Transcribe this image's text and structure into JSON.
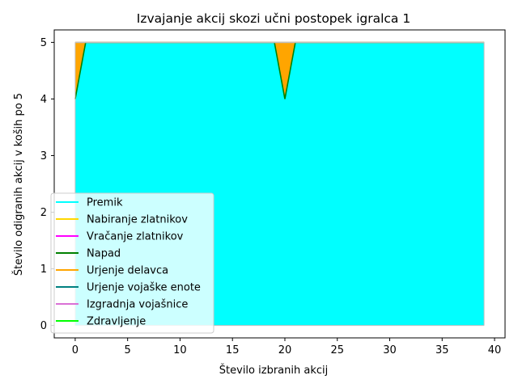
{
  "chart_data": {
    "type": "area",
    "title": "Izvajanje akcij skozi učni postopek igralca 1",
    "xlabel": "Število izbranih akcij",
    "ylabel": "Število odigranih akcij v koših po 5",
    "xlim": [
      -2,
      41
    ],
    "ylim": [
      -0.22,
      5.22
    ],
    "xticks": [
      0,
      5,
      10,
      15,
      20,
      25,
      30,
      35,
      40
    ],
    "yticks": [
      0,
      1,
      2,
      3,
      4,
      5
    ],
    "grid": false,
    "legend_position": "lower-left",
    "stacked": true,
    "x": [
      0,
      1,
      19,
      20,
      21,
      39
    ],
    "series": [
      {
        "name": "Premik",
        "color": "#00ffff",
        "values": [
          0,
          0,
          0,
          0,
          0,
          0
        ]
      },
      {
        "name": "Nabiranje zlatnikov",
        "color": "#ffd700",
        "values": [
          0,
          0,
          0,
          0,
          0,
          0
        ]
      },
      {
        "name": "Vračanje zlatnikov",
        "color": "#ff00ff",
        "values": [
          0,
          0,
          0,
          0,
          0,
          0
        ]
      },
      {
        "name": "Napad",
        "color": "#008000",
        "values": [
          4,
          5,
          5,
          4,
          5,
          5
        ]
      },
      {
        "name": "Urjenje delavca",
        "color": "#ffa500",
        "values": [
          1,
          0,
          0,
          1,
          0,
          0
        ]
      },
      {
        "name": "Urjenje vojaške enote",
        "color": "#008080",
        "values": [
          0,
          0,
          0,
          0,
          0,
          0
        ]
      },
      {
        "name": "Izgradnja vojašnice",
        "color": "#da70d6",
        "values": [
          0,
          0,
          0,
          0,
          0,
          0
        ]
      },
      {
        "name": "Zdravljenje",
        "color": "#00ff00",
        "values": [
          0,
          0,
          0,
          0,
          0,
          0
        ]
      }
    ],
    "fill_color": "#00ffff",
    "top_line_color": "#c0c0c0"
  }
}
